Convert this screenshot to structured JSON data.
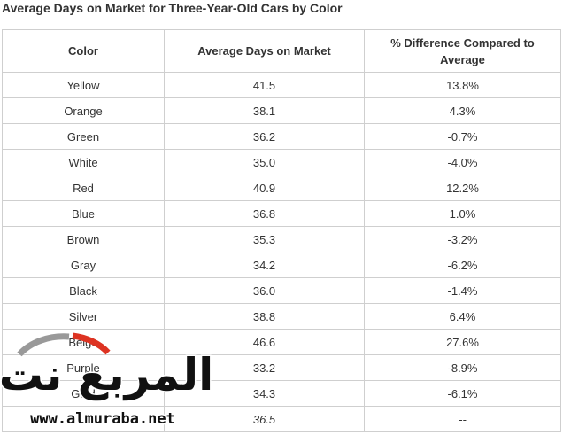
{
  "header": {
    "title": "Average Days on Market for Three-Year-Old Cars by Color"
  },
  "table": {
    "columns": [
      "Color",
      "Average Days on Market",
      "% Difference Compared to Average"
    ],
    "rows": [
      [
        "Yellow",
        "41.5",
        "13.8%"
      ],
      [
        "Orange",
        "38.1",
        "4.3%"
      ],
      [
        "Green",
        "36.2",
        "-0.7%"
      ],
      [
        "White",
        "35.0",
        "-4.0%"
      ],
      [
        "Red",
        "40.9",
        "12.2%"
      ],
      [
        "Blue",
        "36.8",
        "1.0%"
      ],
      [
        "Brown",
        "35.3",
        "-3.2%"
      ],
      [
        "Gray",
        "34.2",
        "-6.2%"
      ],
      [
        "Black",
        "36.0",
        "-1.4%"
      ],
      [
        "Silver",
        "38.8",
        "6.4%"
      ],
      [
        "Beige",
        "46.6",
        "27.6%"
      ],
      [
        "Purple",
        "33.2",
        "-8.9%"
      ],
      [
        "Gold",
        "34.3",
        "-6.1%"
      ],
      [
        null,
        "36.5",
        "--"
      ]
    ]
  },
  "watermark": {
    "name": "المربع نت",
    "url": "www.almuraba.net"
  }
}
